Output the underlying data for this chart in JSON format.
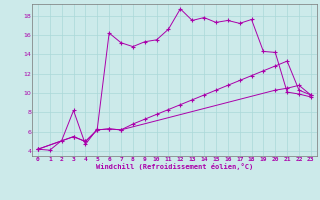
{
  "xlabel": "Windchill (Refroidissement éolien,°C)",
  "bg_color": "#cceaea",
  "line_color": "#aa00aa",
  "grid_color": "#aad8d8",
  "xlim": [
    -0.5,
    23.5
  ],
  "ylim": [
    3.5,
    19.2
  ],
  "xticks": [
    0,
    1,
    2,
    3,
    4,
    5,
    6,
    7,
    8,
    9,
    10,
    11,
    12,
    13,
    14,
    15,
    16,
    17,
    18,
    19,
    20,
    21,
    22,
    23
  ],
  "yticks": [
    4,
    6,
    8,
    10,
    12,
    14,
    16,
    18
  ],
  "line1_x": [
    0,
    1,
    2,
    3,
    4,
    5,
    6,
    7,
    8,
    9,
    10,
    11,
    12,
    13,
    14,
    15,
    16,
    17,
    18,
    19,
    20,
    21,
    22,
    23
  ],
  "line1_y": [
    4.2,
    4.1,
    5.1,
    8.2,
    4.7,
    6.3,
    16.2,
    15.2,
    14.8,
    15.3,
    15.5,
    16.6,
    18.7,
    17.5,
    17.8,
    17.3,
    17.5,
    17.2,
    17.6,
    14.3,
    14.2,
    10.1,
    9.9,
    9.6
  ],
  "line2_x": [
    0,
    3,
    4,
    5,
    6,
    7,
    20,
    21,
    22,
    23
  ],
  "line2_y": [
    4.2,
    5.5,
    5.0,
    6.2,
    6.3,
    6.2,
    10.3,
    10.5,
    10.8,
    9.8
  ],
  "line3_x": [
    0,
    3,
    4,
    5,
    6,
    7,
    8,
    9,
    10,
    11,
    12,
    13,
    14,
    15,
    16,
    17,
    18,
    19,
    20,
    21,
    22,
    23
  ],
  "line3_y": [
    4.2,
    5.5,
    5.0,
    6.2,
    6.3,
    6.2,
    6.8,
    7.3,
    7.8,
    8.3,
    8.8,
    9.3,
    9.8,
    10.3,
    10.8,
    11.3,
    11.8,
    12.3,
    12.8,
    13.3,
    10.3,
    9.8
  ]
}
